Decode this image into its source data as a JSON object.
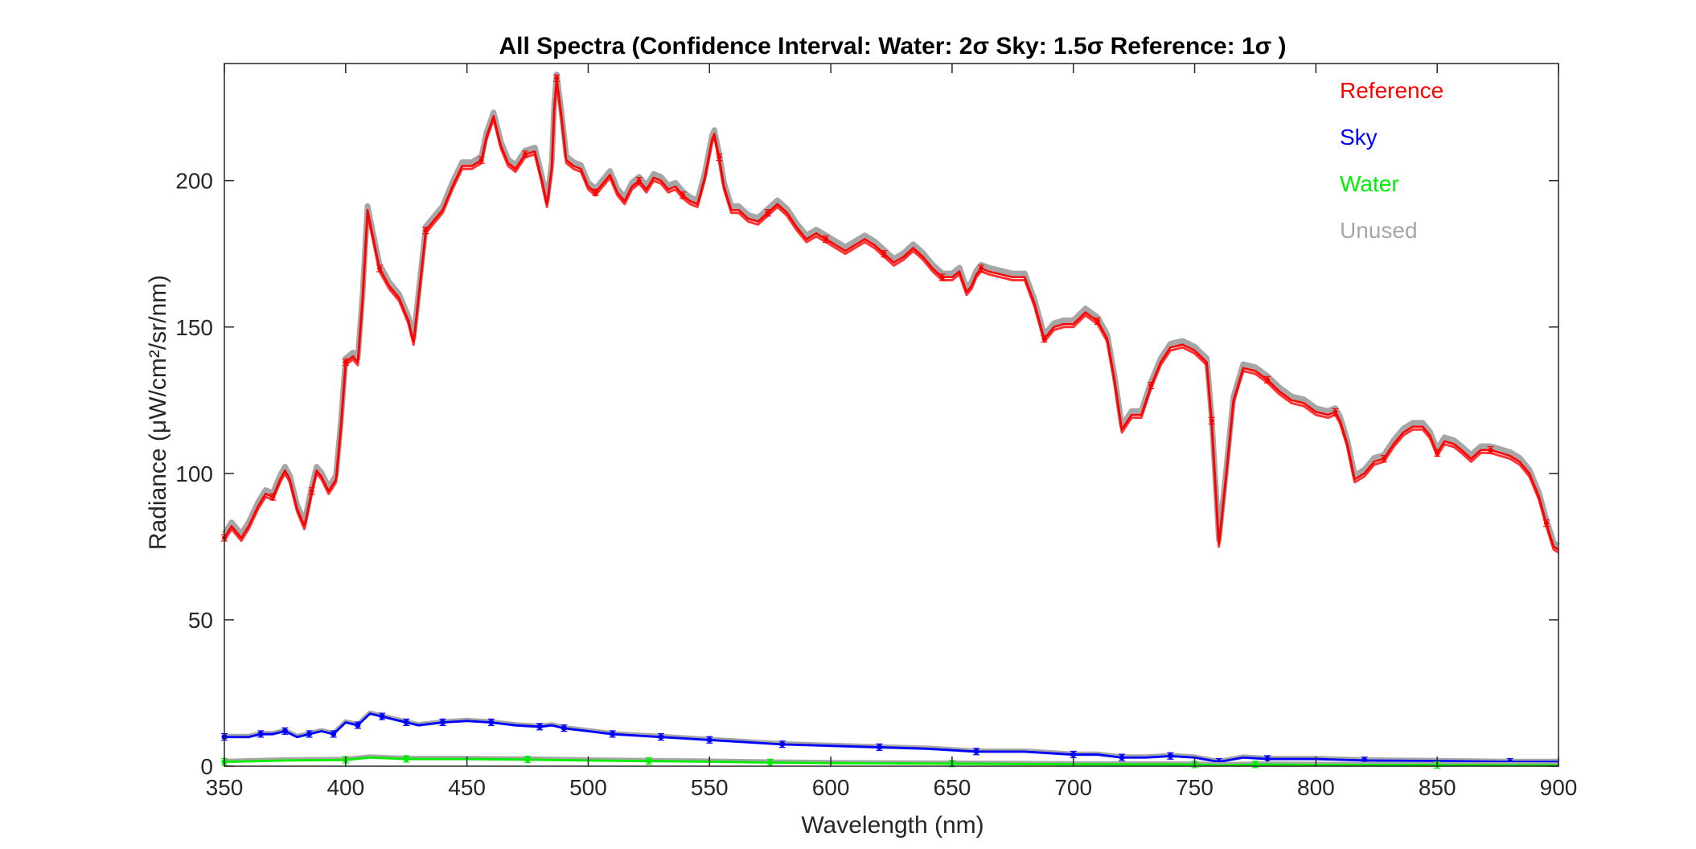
{
  "chart_data": {
    "type": "line",
    "title": "All Spectra (Confidence Interval: Water: 2σ  Sky: 1.5σ  Reference: 1σ )",
    "xlabel": "Wavelength (nm)",
    "ylabel": "Radiance (μW/cm²/sr/nm)",
    "xlim": [
      350,
      900
    ],
    "ylim": [
      0,
      240
    ],
    "xticks": [
      350,
      400,
      450,
      500,
      550,
      600,
      650,
      700,
      750,
      800,
      850,
      900
    ],
    "yticks": [
      0,
      50,
      100,
      150,
      200
    ],
    "grid": false,
    "legend_position": "top-right",
    "series": [
      {
        "name": "Reference",
        "color": "#ff0000",
        "x": [
          350,
          353,
          357,
          360,
          364,
          367,
          370,
          373,
          375,
          377,
          380,
          383,
          386,
          388,
          390,
          393,
          396,
          398,
          400,
          403,
          405,
          407,
          409,
          411,
          414,
          418,
          422,
          426,
          428,
          430,
          433,
          436,
          440,
          444,
          448,
          452,
          456,
          458,
          461,
          464,
          467,
          470,
          474,
          478,
          481,
          483,
          485,
          486,
          487,
          489,
          491,
          494,
          497,
          500,
          503,
          506,
          509,
          512,
          515,
          518,
          521,
          524,
          527,
          530,
          533,
          536,
          539,
          542,
          545,
          548,
          551,
          552,
          554,
          556,
          559,
          562,
          566,
          570,
          574,
          578,
          582,
          586,
          590,
          594,
          598,
          602,
          606,
          610,
          614,
          618,
          622,
          626,
          630,
          634,
          638,
          642,
          646,
          650,
          653,
          656,
          658,
          660,
          662,
          665,
          670,
          675,
          680,
          684,
          688,
          690,
          692,
          696,
          700,
          705,
          710,
          714,
          717,
          720,
          724,
          728,
          732,
          736,
          740,
          745,
          750,
          755,
          757,
          760,
          763,
          766,
          770,
          775,
          780,
          785,
          790,
          795,
          800,
          805,
          808,
          810,
          813,
          816,
          820,
          824,
          828,
          832,
          836,
          840,
          844,
          847,
          850,
          853,
          857,
          860,
          864,
          868,
          872,
          876,
          880,
          884,
          888,
          892,
          895,
          898,
          900
        ],
        "values": [
          78,
          82,
          78,
          82,
          89,
          93,
          92,
          98,
          101,
          98,
          88,
          82,
          94,
          101,
          99,
          94,
          98,
          116,
          138,
          140,
          138,
          160,
          190,
          182,
          170,
          164,
          160,
          152,
          145,
          160,
          183,
          186,
          190,
          198,
          205,
          205,
          207,
          215,
          222,
          212,
          206,
          204,
          209,
          210,
          200,
          192,
          205,
          225,
          235,
          222,
          207,
          205,
          204,
          198,
          196,
          199,
          202,
          196,
          193,
          198,
          200,
          197,
          201,
          200,
          197,
          198,
          195,
          193,
          192,
          201,
          214,
          216,
          208,
          198,
          190,
          190,
          187,
          186,
          189,
          192,
          189,
          184,
          180,
          182,
          180,
          178,
          176,
          178,
          180,
          178,
          175,
          172,
          174,
          177,
          174,
          170,
          167,
          167,
          169,
          162,
          164,
          168,
          170,
          169,
          168,
          167,
          167,
          158,
          146,
          148,
          150,
          151,
          151,
          155,
          152,
          146,
          132,
          115,
          120,
          120,
          130,
          138,
          143,
          144,
          142,
          138,
          118,
          76,
          100,
          125,
          136,
          135,
          132,
          128,
          125,
          124,
          121,
          120,
          121,
          118,
          110,
          98,
          100,
          104,
          105,
          110,
          114,
          116,
          116,
          113,
          107,
          111,
          110,
          108,
          105,
          108,
          108,
          107,
          106,
          104,
          100,
          92,
          83,
          75,
          74
        ]
      },
      {
        "name": "Sky",
        "color": "#0000ff",
        "x": [
          350,
          360,
          365,
          370,
          375,
          380,
          385,
          390,
          395,
          400,
          405,
          410,
          415,
          420,
          425,
          430,
          440,
          450,
          460,
          470,
          480,
          485,
          490,
          500,
          510,
          520,
          530,
          540,
          550,
          560,
          580,
          600,
          620,
          640,
          660,
          680,
          700,
          710,
          720,
          730,
          740,
          750,
          760,
          770,
          780,
          800,
          820,
          850,
          880,
          900
        ],
        "values": [
          10,
          10,
          11,
          11,
          12,
          10,
          11,
          12,
          11,
          15,
          14,
          18,
          17,
          16,
          15,
          14,
          15,
          15.5,
          15,
          14,
          13.5,
          14,
          13,
          12,
          11,
          10.5,
          10,
          9.5,
          9,
          8.5,
          7.5,
          7,
          6.5,
          6,
          5,
          5,
          4,
          4,
          3,
          3,
          3.5,
          3,
          1.5,
          3,
          2.5,
          2.5,
          2,
          1.8,
          1.5,
          1.5
        ]
      },
      {
        "name": "Water",
        "color": "#00ee00",
        "x": [
          350,
          375,
          400,
          410,
          425,
          450,
          475,
          500,
          525,
          550,
          575,
          600,
          650,
          700,
          750,
          760,
          775,
          800,
          850,
          900
        ],
        "values": [
          1.5,
          2,
          2.2,
          3,
          2.5,
          2.5,
          2.3,
          2,
          1.8,
          1.6,
          1.3,
          1.1,
          0.9,
          0.7,
          0.6,
          0.3,
          0.6,
          0.5,
          0.4,
          0.3
        ]
      },
      {
        "name": "Unused",
        "color": "#a6a6a6"
      }
    ]
  }
}
